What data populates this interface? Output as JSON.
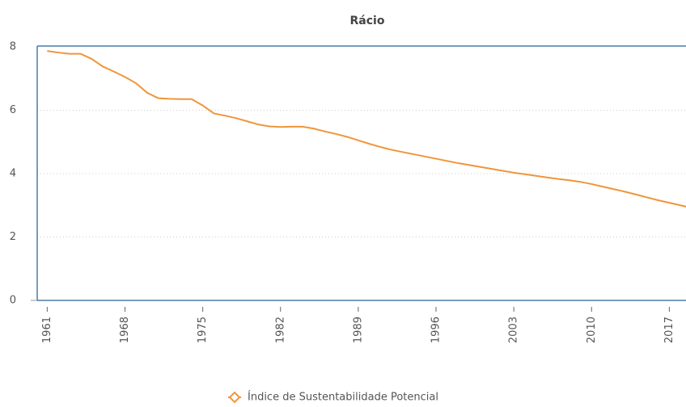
{
  "chart_data": {
    "type": "line",
    "title": "Rácio",
    "x": [
      1961,
      1962,
      1963,
      1964,
      1965,
      1966,
      1967,
      1968,
      1969,
      1970,
      1971,
      1972,
      1973,
      1974,
      1975,
      1976,
      1977,
      1978,
      1979,
      1980,
      1981,
      1982,
      1983,
      1984,
      1985,
      1986,
      1987,
      1988,
      1989,
      1990,
      1991,
      1992,
      1993,
      1994,
      1995,
      1996,
      1997,
      1998,
      1999,
      2000,
      2001,
      2002,
      2003,
      2004,
      2005,
      2006,
      2007,
      2008,
      2009,
      2010,
      2011,
      2012,
      2013,
      2014,
      2015,
      2016,
      2017,
      2018,
      2019
    ],
    "series": [
      {
        "name": "Índice de Sustentabilidade Potencial",
        "color": "#f0953a",
        "values": [
          7.87,
          7.82,
          7.78,
          7.78,
          7.62,
          7.38,
          7.22,
          7.05,
          6.85,
          6.55,
          6.38,
          6.36,
          6.35,
          6.35,
          6.15,
          5.9,
          5.83,
          5.75,
          5.65,
          5.55,
          5.49,
          5.47,
          5.48,
          5.48,
          5.42,
          5.33,
          5.25,
          5.16,
          5.05,
          4.94,
          4.84,
          4.75,
          4.68,
          4.61,
          4.54,
          4.47,
          4.4,
          4.33,
          4.27,
          4.21,
          4.15,
          4.09,
          4.03,
          3.98,
          3.93,
          3.88,
          3.83,
          3.79,
          3.74,
          3.67,
          3.59,
          3.51,
          3.43,
          3.34,
          3.25,
          3.16,
          3.08,
          3.0,
          2.92
        ]
      }
    ],
    "xlim": [
      1960.1,
      2018.5
    ],
    "xticks": [
      1961,
      1968,
      1975,
      1982,
      1989,
      1996,
      2003,
      2010,
      2017
    ],
    "ylim": [
      0,
      8
    ],
    "yticks": [
      0,
      2,
      4,
      6,
      8
    ],
    "grid": true,
    "legend": "bottom"
  }
}
